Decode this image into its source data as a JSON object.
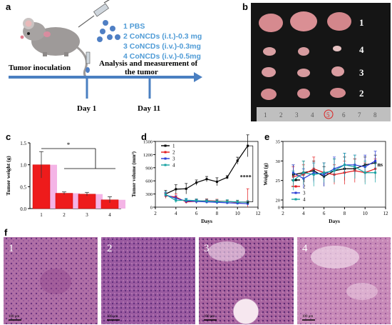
{
  "panel_labels": {
    "a": "a",
    "b": "b",
    "c": "c",
    "d": "d",
    "e": "e",
    "f": "f"
  },
  "colors": {
    "blue_text": "#4f9bd6",
    "timeline": "#4a7fc1",
    "bar_red": "#ee1b1b",
    "bar_pink": "#f4b4e6",
    "g1": "#000000",
    "g2": "#e31a1c",
    "g3": "#2a3bd6",
    "g4": "#17a3a3"
  },
  "panel_a": {
    "treatments": [
      "1 PBS",
      "2 CoNCDs (i.t.)-0.3 mg",
      "3 CoNCDs (i.v.)-0.3mg",
      "4 CoNCDs (i.v.)-0.5mg"
    ],
    "tumor_inoculation": "Tumor inoculation",
    "analysis_line1": "Analysis and measurement of",
    "analysis_line2": "the tumor",
    "day1": "Day 1",
    "day11": "Day 11"
  },
  "panel_b": {
    "row_labels": [
      "1",
      "4",
      "3",
      "2"
    ],
    "ruler_numbers": [
      "1",
      "2",
      "3",
      "4",
      "5",
      "6",
      "7",
      "8"
    ]
  },
  "panel_f": {
    "labels": [
      "1",
      "2",
      "3",
      "4"
    ],
    "scale_bar": "100 μm"
  },
  "chart_data": [
    {
      "type": "bar",
      "panel": "c",
      "categories": [
        "1",
        "2",
        "3",
        "4"
      ],
      "values": [
        1.0,
        0.35,
        0.33,
        0.2
      ],
      "errors": [
        0.3,
        0.03,
        0.04,
        0.07
      ],
      "ylabel": "Tumor weight (g)",
      "ylim": [
        0.0,
        1.5
      ],
      "yticks": [
        "0.0",
        "0.5",
        "1.0",
        "1.5"
      ],
      "significance": "*"
    },
    {
      "type": "line",
      "panel": "d",
      "xlabel": "Days",
      "ylabel": "Tumor volume (mm³)",
      "xlim": [
        2,
        12
      ],
      "ylim": [
        0,
        1500
      ],
      "xticks": [
        "2",
        "4",
        "6",
        "8",
        "10",
        "12"
      ],
      "yticks": [
        "0",
        "300",
        "600",
        "900",
        "1200",
        "1500"
      ],
      "x": [
        3,
        4,
        5,
        6,
        7,
        8,
        9,
        10,
        11
      ],
      "series": [
        {
          "name": "1",
          "values": [
            300,
            410,
            420,
            560,
            640,
            580,
            680,
            1060,
            1400
          ],
          "errors": [
            80,
            100,
            120,
            60,
            60,
            90,
            40,
            80,
            250
          ]
        },
        {
          "name": "2",
          "values": [
            260,
            230,
            120,
            130,
            150,
            140,
            130,
            110,
            120
          ],
          "errors": [
            60,
            70,
            40,
            50,
            40,
            40,
            30,
            40,
            300
          ]
        },
        {
          "name": "3",
          "values": [
            280,
            200,
            140,
            130,
            120,
            110,
            100,
            90,
            80
          ],
          "errors": [
            50,
            60,
            50,
            40,
            40,
            40,
            30,
            30,
            40
          ]
        },
        {
          "name": "4",
          "values": [
            290,
            150,
            160,
            150,
            140,
            130,
            130,
            120,
            110
          ],
          "errors": [
            60,
            50,
            40,
            40,
            40,
            40,
            40,
            40,
            40
          ]
        }
      ],
      "significance": [
        "****",
        "*"
      ]
    },
    {
      "type": "line",
      "panel": "e",
      "xlabel": "Days",
      "ylabel": "Weight (g)",
      "xlim": [
        2,
        12
      ],
      "ylim": [
        0,
        35
      ],
      "xticks": [
        "2",
        "4",
        "6",
        "8",
        "10",
        "12"
      ],
      "yticks": [
        "0",
        "20",
        "25",
        "30",
        "35"
      ],
      "x": [
        3,
        4,
        5,
        6,
        7,
        8,
        9,
        10,
        11
      ],
      "series": [
        {
          "name": "1",
          "values": [
            26.5,
            27,
            27.5,
            26,
            27.5,
            28,
            28,
            29,
            29.5
          ],
          "errors": [
            2.5,
            3,
            2.5,
            2.5,
            3,
            3,
            2.5,
            2,
            2
          ]
        },
        {
          "name": "2",
          "values": [
            26,
            26.5,
            28,
            27,
            26.5,
            27,
            27.5,
            27,
            28
          ],
          "errors": [
            2.5,
            2.5,
            3,
            2.5,
            2.5,
            3,
            3,
            2.5,
            2.5
          ]
        },
        {
          "name": "3",
          "values": [
            27,
            25.5,
            27,
            26.5,
            28,
            29,
            29,
            28.5,
            30
          ],
          "errors": [
            2,
            2.5,
            2.5,
            3,
            3,
            3,
            2.5,
            3,
            2.5
          ]
        },
        {
          "name": "4",
          "values": [
            25,
            27,
            26.5,
            27,
            27.5,
            29,
            28.5,
            27,
            27
          ],
          "errors": [
            2.5,
            3,
            3,
            2.5,
            3,
            3,
            3,
            3,
            2.5
          ]
        }
      ],
      "significance": "ns"
    }
  ]
}
